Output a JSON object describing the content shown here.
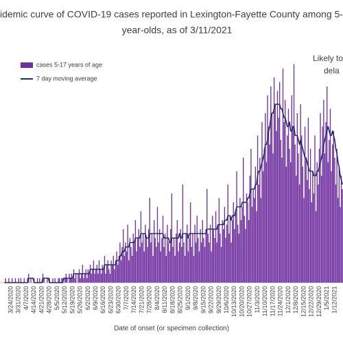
{
  "chart_data": {
    "type": "bar",
    "title": [
      "idemic curve of COVID-19 cases reported in Lexington-Fayette County among 5-",
      "year-olds, as of 3/11/2021"
    ],
    "annotation": [
      "Likely to",
      "dela"
    ],
    "x_label": "Date of onset (or specimen collection)",
    "ylim": [
      0,
      50
    ],
    "categories": [
      null,
      null,
      null,
      null,
      null,
      null,
      "3/24/2020",
      null,
      null,
      null,
      null,
      null,
      null,
      "3/31/2020",
      null,
      null,
      null,
      null,
      null,
      null,
      "4/7/2020",
      null,
      null,
      null,
      null,
      null,
      null,
      "4/14/2020",
      null,
      null,
      null,
      null,
      null,
      null,
      "4/21/2020",
      null,
      null,
      null,
      null,
      null,
      null,
      "4/28/2020",
      null,
      null,
      null,
      null,
      null,
      null,
      "5/5/2020",
      null,
      null,
      null,
      null,
      null,
      null,
      "5/12/2020",
      null,
      null,
      null,
      null,
      null,
      null,
      "5/19/2020",
      null,
      null,
      null,
      null,
      null,
      null,
      "5/26/2020",
      null,
      null,
      null,
      null,
      null,
      null,
      "6/2/2020",
      null,
      null,
      null,
      null,
      null,
      null,
      "6/9/2020",
      null,
      null,
      null,
      null,
      null,
      null,
      "6/16/2020",
      null,
      null,
      null,
      null,
      null,
      null,
      "6/23/2020",
      null,
      null,
      null,
      null,
      null,
      null,
      "6/30/2020",
      null,
      null,
      null,
      null,
      null,
      null,
      "7/7/2020",
      null,
      null,
      null,
      null,
      null,
      null,
      "7/14/2020",
      null,
      null,
      null,
      null,
      null,
      null,
      "7/21/2020",
      null,
      null,
      null,
      null,
      null,
      null,
      "7/28/2020",
      null,
      null,
      null,
      null,
      null,
      null,
      "8/4/2020",
      null,
      null,
      null,
      null,
      null,
      null,
      "8/11/2020",
      null,
      null,
      null,
      null,
      null,
      null,
      "8/18/2020",
      null,
      null,
      null,
      null,
      null,
      null,
      "8/25/2020",
      null,
      null,
      null,
      null,
      null,
      null,
      "9/1/2020",
      null,
      null,
      null,
      null,
      null,
      null,
      "9/8/2020",
      null,
      null,
      null,
      null,
      null,
      null,
      "9/15/2020",
      null,
      null,
      null,
      null,
      null,
      null,
      "9/22/2020",
      null,
      null,
      null,
      null,
      null,
      null,
      "9/29/2020",
      null,
      null,
      null,
      null,
      null,
      null,
      "10/6/2020",
      null,
      null,
      null,
      null,
      null,
      null,
      "10/13/2020",
      null,
      null,
      null,
      null,
      null,
      null,
      "10/20/2020",
      null,
      null,
      null,
      null,
      null,
      null,
      "10/27/2020",
      null,
      null,
      null,
      null,
      null,
      null,
      "11/3/2020",
      null,
      null,
      null,
      null,
      null,
      null,
      "11/10/2020",
      null,
      null,
      null,
      null,
      null,
      null,
      "11/17/2020",
      null,
      null,
      null,
      null,
      null,
      null,
      "11/24/2020",
      null,
      null,
      null,
      null,
      null,
      null,
      "12/1/2020",
      null,
      null,
      null,
      null,
      null,
      null,
      "12/8/2020",
      null,
      null,
      null,
      null,
      null,
      null,
      "12/15/2020",
      null,
      null,
      null,
      null,
      null,
      null,
      "12/22/2020",
      null,
      null,
      null,
      null,
      null,
      null,
      "12/29/2020",
      null,
      null,
      null,
      null,
      null,
      null,
      "1/5/2021",
      null,
      null,
      null,
      null,
      null,
      null,
      "1/12/2021",
      null,
      null,
      null,
      null,
      null,
      null,
      null
    ],
    "series": [
      {
        "name": "cases 5-17 years of age",
        "type": "bar",
        "color": "#7030a0",
        "values": [
          0,
          1,
          0,
          0,
          1,
          0,
          0,
          1,
          0,
          0,
          1,
          0,
          0,
          1,
          0,
          1,
          0,
          0,
          1,
          0,
          0,
          1,
          2,
          0,
          1,
          0,
          0,
          1,
          0,
          0,
          1,
          0,
          1,
          0,
          0,
          2,
          1,
          0,
          0,
          1,
          0,
          1,
          0,
          0,
          1,
          0,
          1,
          0,
          0,
          1,
          1,
          0,
          1,
          1,
          0,
          1,
          2,
          1,
          0,
          2,
          1,
          2,
          1,
          3,
          1,
          2,
          0,
          2,
          3,
          1,
          2,
          4,
          1,
          2,
          3,
          1,
          3,
          2,
          4,
          2,
          3,
          5,
          2,
          3,
          4,
          2,
          5,
          3,
          2,
          4,
          3,
          6,
          2,
          4,
          5,
          3,
          2,
          5,
          4,
          6,
          3,
          5,
          7,
          4,
          6,
          9,
          5,
          8,
          12,
          6,
          9,
          7,
          13,
          5,
          10,
          8,
          6,
          11,
          9,
          14,
          7,
          10,
          12,
          8,
          16,
          9,
          11,
          7,
          13,
          10,
          8,
          12,
          19,
          9,
          11,
          6,
          14,
          10,
          8,
          17,
          9,
          12,
          7,
          10,
          15,
          8,
          11,
          6,
          13,
          9,
          7,
          12,
          20,
          8,
          10,
          6,
          11,
          14,
          7,
          9,
          12,
          8,
          22,
          9,
          6,
          11,
          13,
          7,
          10,
          18,
          8,
          11,
          6,
          13,
          9,
          15,
          10,
          7,
          12,
          9,
          14,
          10,
          8,
          12,
          21,
          11,
          9,
          13,
          7,
          15,
          12,
          10,
          16,
          9,
          13,
          19,
          11,
          8,
          14,
          12,
          17,
          10,
          13,
          22,
          11,
          15,
          9,
          14,
          18,
          12,
          16,
          25,
          13,
          11,
          19,
          14,
          17,
          28,
          15,
          12,
          20,
          18,
          14,
          24,
          30,
          17,
          21,
          19,
          26,
          16,
          33,
          22,
          28,
          19,
          36,
          25,
          30,
          38,
          27,
          42,
          35,
          31,
          44,
          38,
          29,
          46,
          40,
          34,
          43,
          37,
          45,
          32,
          28,
          48,
          36,
          41,
          26,
          33,
          39,
          30,
          27,
          42,
          35,
          49,
          31,
          24,
          38,
          29,
          22,
          40,
          33,
          26,
          19,
          35,
          28,
          23,
          37,
          21,
          30,
          18,
          25,
          20,
          33,
          16,
          27,
          22,
          30,
          38,
          24,
          35,
          41,
          29,
          36,
          44,
          27,
          32,
          39,
          25,
          31,
          34,
          28,
          22,
          30,
          19,
          26,
          17,
          24,
          21
        ]
      },
      {
        "name": "7 day moving average",
        "type": "line",
        "color": "#1f2a6e",
        "values": [
          0,
          0,
          0,
          0,
          0,
          0,
          0,
          0,
          0,
          0,
          0,
          0,
          0,
          0,
          0,
          0,
          0,
          0,
          0,
          0,
          0,
          0,
          1,
          1,
          1,
          1,
          1,
          0,
          0,
          0,
          0,
          0,
          0,
          0,
          0,
          1,
          1,
          1,
          1,
          1,
          1,
          0,
          0,
          0,
          0,
          0,
          0,
          0,
          0,
          0,
          0,
          0,
          0,
          0,
          1,
          1,
          1,
          1,
          1,
          1,
          1,
          1,
          1,
          2,
          2,
          2,
          2,
          2,
          2,
          2,
          2,
          2,
          2,
          2,
          2,
          2,
          2,
          2,
          3,
          3,
          3,
          3,
          3,
          3,
          3,
          3,
          3,
          3,
          3,
          3,
          3,
          4,
          4,
          4,
          4,
          4,
          4,
          4,
          4,
          4,
          4,
          4,
          5,
          5,
          5,
          6,
          6,
          7,
          7,
          7,
          8,
          8,
          8,
          8,
          9,
          9,
          9,
          9,
          9,
          10,
          10,
          10,
          10,
          10,
          11,
          11,
          11,
          11,
          11,
          10,
          10,
          10,
          11,
          11,
          11,
          11,
          11,
          11,
          11,
          11,
          11,
          11,
          11,
          11,
          11,
          10,
          10,
          10,
          10,
          10,
          9,
          9,
          10,
          10,
          10,
          10,
          10,
          10,
          10,
          11,
          10,
          10,
          11,
          11,
          11,
          11,
          11,
          10,
          11,
          11,
          11,
          11,
          11,
          11,
          11,
          11,
          11,
          11,
          11,
          11,
          11,
          11,
          11,
          11,
          12,
          12,
          12,
          12,
          12,
          12,
          12,
          12,
          12,
          12,
          13,
          13,
          13,
          13,
          13,
          13,
          14,
          14,
          14,
          15,
          15,
          15,
          14,
          15,
          15,
          15,
          16,
          17,
          17,
          17,
          17,
          17,
          18,
          18,
          18,
          18,
          18,
          19,
          19,
          20,
          21,
          21,
          21,
          21,
          22,
          22,
          24,
          25,
          25,
          26,
          27,
          28,
          29,
          31,
          31,
          32,
          34,
          35,
          37,
          38,
          38,
          39,
          40,
          40,
          40,
          40,
          40,
          39,
          39,
          38,
          37,
          37,
          36,
          35,
          35,
          36,
          34,
          34,
          35,
          35,
          33,
          33,
          33,
          32,
          31,
          32,
          31,
          30,
          29,
          28,
          28,
          27,
          26,
          25,
          25,
          25,
          25,
          24,
          24,
          24,
          25,
          25,
          26,
          27,
          28,
          29,
          31,
          32,
          33,
          34,
          35,
          34,
          33,
          33,
          34,
          33,
          32,
          30,
          29,
          27,
          26,
          24,
          23,
          22
        ]
      }
    ]
  }
}
